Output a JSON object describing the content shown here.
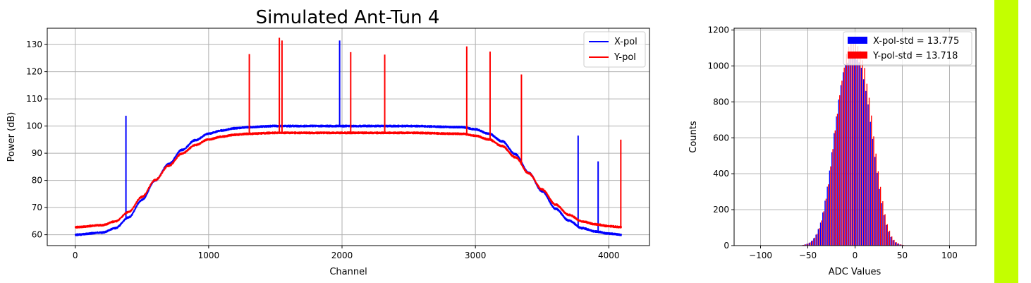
{
  "accent_bar_color": "#c3ff00",
  "chart_data": [
    {
      "type": "line",
      "title": "Simulated Ant-Tun 4",
      "xlabel": "Channel",
      "ylabel": "Power (dB)",
      "xlim": [
        -210,
        4305
      ],
      "ylim": [
        56,
        136
      ],
      "xticks": [
        0,
        1000,
        2000,
        3000,
        4000
      ],
      "yticks": [
        60,
        70,
        80,
        90,
        100,
        110,
        120,
        130
      ],
      "grid": true,
      "legend": "top-right",
      "bandpass_shape": {
        "x": [
          0,
          200,
          300,
          400,
          500,
          600,
          700,
          800,
          900,
          1000,
          1100,
          1200,
          1300,
          1500,
          2000,
          2500,
          2900,
          3000,
          3100,
          3200,
          3300,
          3400,
          3500,
          3600,
          3700,
          3800,
          3900,
          4000,
          4095
        ],
        "frac": [
          0,
          0.02,
          0.06,
          0.16,
          0.32,
          0.5,
          0.65,
          0.78,
          0.87,
          0.93,
          0.96,
          0.98,
          0.99,
          1.0,
          1.0,
          1.0,
          0.99,
          0.97,
          0.93,
          0.86,
          0.74,
          0.57,
          0.4,
          0.24,
          0.13,
          0.06,
          0.03,
          0.01,
          0
        ]
      },
      "series": [
        {
          "name": "X-pol",
          "color": "#0000ff",
          "floor": 60,
          "plateau": 100,
          "noise": 0.35,
          "spikes": [
            [
              380,
              103.8
            ],
            [
              1982,
              131.5
            ],
            [
              3770,
              96.5
            ],
            [
              3920,
              87
            ]
          ]
        },
        {
          "name": "Y-pol",
          "color": "#ff0000",
          "floor": 62.8,
          "plateau": 97.5,
          "noise": 0.35,
          "spikes": [
            [
              1305,
              126.5
            ],
            [
              1530,
              132.5
            ],
            [
              1550,
              131.5
            ],
            [
              2065,
              127.2
            ],
            [
              2320,
              126.3
            ],
            [
              2935,
              129.3
            ],
            [
              3110,
              127.4
            ],
            [
              3345,
              119
            ],
            [
              4090,
              95
            ]
          ]
        }
      ]
    },
    {
      "type": "bar",
      "xlabel": "ADC Values",
      "ylabel": "Counts",
      "xlim": [
        -128,
        128
      ],
      "ylim": [
        0,
        1210
      ],
      "xticks": [
        -100,
        -50,
        0,
        50,
        100
      ],
      "yticks": [
        0,
        200,
        400,
        600,
        800,
        1000,
        1200
      ],
      "grid": true,
      "legend": "top-right",
      "bin_step": 2.4,
      "series": [
        {
          "name": "X-pol-std = 13.775",
          "color": "#0000ff",
          "std": 13.775,
          "x": [
            -62.4,
            -60.0,
            -57.6,
            -55.2,
            -52.8,
            -50.4,
            -48.0,
            -45.6,
            -43.2,
            -40.8,
            -38.4,
            -36.0,
            -33.6,
            -31.2,
            -28.8,
            -26.4,
            -24.0,
            -21.6,
            -19.2,
            -16.8,
            -14.4,
            -12.0,
            -9.6,
            -7.2,
            -4.8,
            -2.4,
            0.0,
            2.4,
            4.8,
            7.2,
            9.6,
            12.0,
            14.4,
            16.8,
            19.2,
            21.6,
            24.0,
            26.4,
            28.8,
            31.2,
            33.6,
            36.0,
            38.4,
            40.8,
            43.2,
            45.6,
            48.0,
            50.4,
            52.8,
            55.2,
            57.6,
            60.0,
            62.4
          ],
          "values": [
            0,
            1,
            2,
            3,
            6,
            10,
            16,
            26,
            41,
            61,
            92,
            128,
            184,
            250,
            328,
            418,
            520,
            626,
            719,
            813,
            893,
            965,
            1007,
            1018,
            1042,
            1052,
            1046,
            1035,
            1020,
            990,
            926,
            861,
            786,
            689,
            594,
            494,
            405,
            315,
            236,
            169,
            115,
            77,
            48,
            30,
            18,
            11,
            6,
            3,
            2,
            1,
            0,
            0,
            0
          ]
        },
        {
          "name": "Y-pol-std = 13.718",
          "color": "#ff0000",
          "std": 13.718,
          "x": [
            -62.4,
            -60.0,
            -57.6,
            -55.2,
            -52.8,
            -50.4,
            -48.0,
            -45.6,
            -43.2,
            -40.8,
            -38.4,
            -36.0,
            -33.6,
            -31.2,
            -28.8,
            -26.4,
            -24.0,
            -21.6,
            -19.2,
            -16.8,
            -14.4,
            -12.0,
            -9.6,
            -7.2,
            -4.8,
            -2.4,
            0.0,
            2.4,
            4.8,
            7.2,
            9.6,
            12.0,
            14.4,
            16.8,
            19.2,
            21.6,
            24.0,
            26.4,
            28.8,
            31.2,
            33.6,
            36.0,
            38.4,
            40.8,
            43.2,
            45.6,
            48.0,
            50.4,
            52.8,
            55.2,
            57.6,
            60.0,
            62.4
          ],
          "values": [
            1,
            1,
            2,
            4,
            7,
            11,
            18,
            28,
            44,
            65,
            97,
            140,
            191,
            261,
            341,
            441,
            537,
            641,
            734,
            837,
            918,
            991,
            1067,
            1107,
            1125,
            1138,
            1124,
            1110,
            1085,
            1032,
            989,
            901,
            823,
            724,
            608,
            512,
            414,
            327,
            247,
            175,
            119,
            83,
            51,
            32,
            19,
            12,
            7,
            4,
            2,
            1,
            1,
            0,
            0
          ]
        }
      ]
    }
  ]
}
